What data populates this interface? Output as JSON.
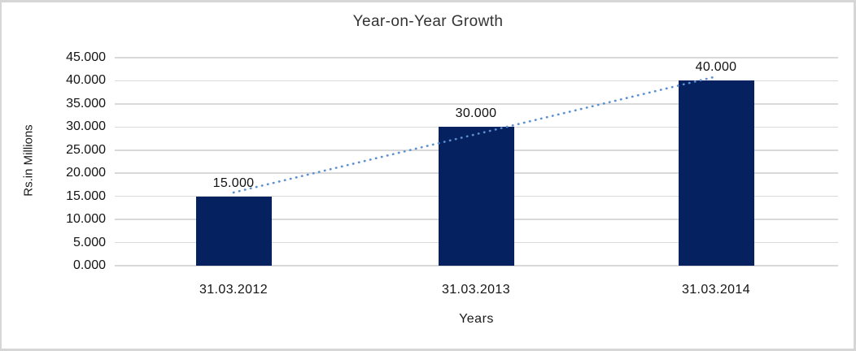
{
  "chart_data": {
    "type": "bar",
    "title": "Year-on-Year Growth",
    "xlabel": "Years",
    "ylabel": "Rs.in Millions",
    "categories": [
      "31.03.2012",
      "31.03.2013",
      "31.03.2014"
    ],
    "values": [
      15000,
      30000,
      40000
    ],
    "value_labels": [
      "15.000",
      "30.000",
      "40.000"
    ],
    "y_ticks": [
      "0.000",
      "5.000",
      "10.000",
      "15.000",
      "20.000",
      "25.000",
      "30.000",
      "35.000",
      "40.000",
      "45.000"
    ],
    "y_tick_step": 5000,
    "ylim": [
      0,
      45000
    ],
    "grid": true,
    "legend": false,
    "bar_color": "#062160",
    "gridline_color": "#d9d9d9",
    "frame_color": "#d6d6d6",
    "trendline": {
      "type": "linear",
      "style": "dotted",
      "color": "#5B8FD0",
      "start_value": 15833,
      "end_value": 40833
    }
  }
}
